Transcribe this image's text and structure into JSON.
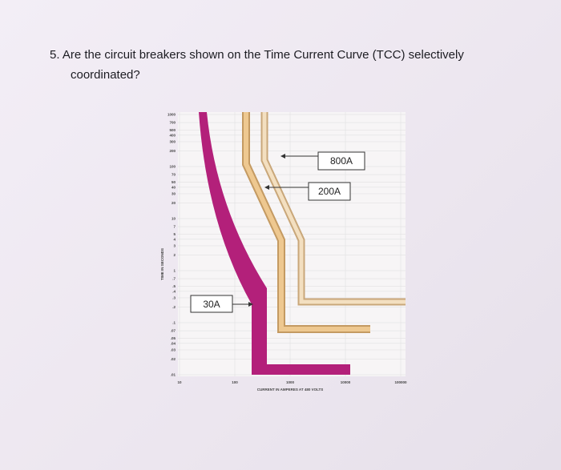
{
  "question": {
    "lines": [
      "5. Are the circuit breakers shown on the Time Current Curve (TCC) selectively",
      "coordinated?"
    ]
  },
  "figure": {
    "labels": {
      "breaker_800": "800A",
      "breaker_200": "200A",
      "breaker_30": "30A"
    },
    "y_axis_title": "TIME IN SECONDS",
    "x_axis_title": "CURRENT IN AMPERES AT 480 VOLTS",
    "y_tick_labels": [
      "1000",
      "700",
      "500",
      "400",
      "300",
      "200",
      "100",
      "70",
      "50",
      "40",
      "30",
      "20",
      "10",
      "7",
      "5",
      "4",
      "3",
      "2",
      "1",
      ".7",
      ".5",
      ".4",
      ".3",
      ".2",
      ".1",
      ".07",
      ".05",
      ".04",
      ".03",
      ".02",
      ".01"
    ],
    "x_tick_labels": [
      "10",
      "100",
      "1000",
      "10000",
      "100000"
    ]
  }
}
